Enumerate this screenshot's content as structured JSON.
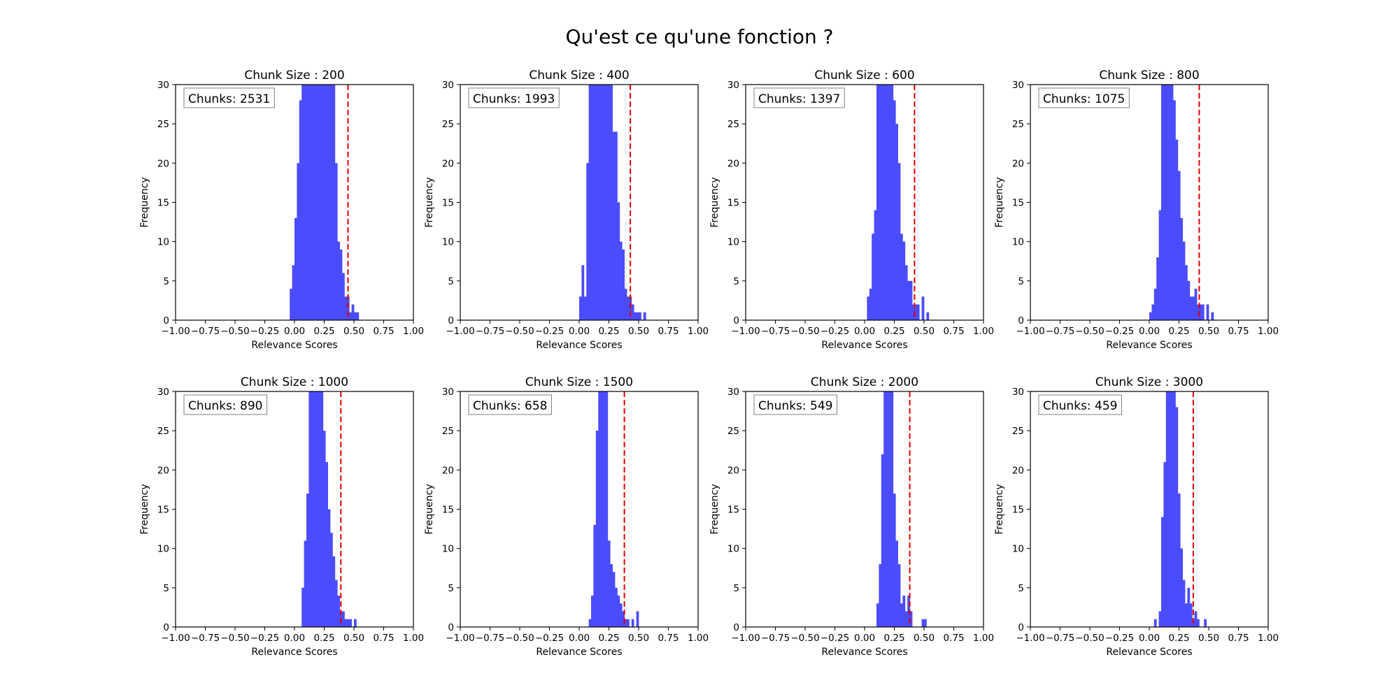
{
  "figure": {
    "suptitle": "Qu'est ce qu'une fonction ?"
  },
  "colors": {
    "bars": "#4c4cff",
    "threshold_line": "#e00000",
    "axes": "#000000",
    "background": "#ffffff"
  },
  "chart_data": [
    {
      "type": "bar",
      "title": "Chunk Size : 200",
      "annotation": "Chunks: 2531",
      "xlabel": "Relevance Scores",
      "ylabel": "Frequency",
      "xlim": [
        -1.0,
        1.0
      ],
      "ylim": [
        0,
        30
      ],
      "xticks": [
        "−1.00",
        "−0.75",
        "−0.50",
        "−0.25",
        "0.00",
        "0.25",
        "0.50",
        "0.75",
        "1.00"
      ],
      "yticks": [
        "0",
        "5",
        "10",
        "15",
        "20",
        "25",
        "30"
      ],
      "bin_width": 0.02,
      "bins": [
        [
          -0.03,
          4
        ],
        [
          -0.01,
          7
        ],
        [
          0.01,
          13
        ],
        [
          0.03,
          20
        ],
        [
          0.05,
          28
        ],
        [
          0.07,
          30
        ],
        [
          0.09,
          30
        ],
        [
          0.11,
          30
        ],
        [
          0.13,
          30
        ],
        [
          0.15,
          30
        ],
        [
          0.17,
          30
        ],
        [
          0.19,
          30
        ],
        [
          0.21,
          30
        ],
        [
          0.23,
          30
        ],
        [
          0.25,
          30
        ],
        [
          0.27,
          30
        ],
        [
          0.29,
          30
        ],
        [
          0.31,
          30
        ],
        [
          0.33,
          30
        ],
        [
          0.35,
          20
        ],
        [
          0.37,
          10
        ],
        [
          0.39,
          9
        ],
        [
          0.41,
          6
        ],
        [
          0.43,
          3
        ],
        [
          0.45,
          3
        ],
        [
          0.47,
          1
        ],
        [
          0.49,
          2
        ],
        [
          0.51,
          1
        ],
        [
          0.53,
          1
        ]
      ],
      "threshold": 0.45,
      "grid": false
    },
    {
      "type": "bar",
      "title": "Chunk Size : 400",
      "annotation": "Chunks: 1993",
      "xlabel": "Relevance Scores",
      "ylabel": "Frequency",
      "xlim": [
        -1.0,
        1.0
      ],
      "ylim": [
        0,
        30
      ],
      "xticks": [
        "−1.00",
        "−0.75",
        "−0.50",
        "−0.25",
        "0.00",
        "0.25",
        "0.50",
        "0.75",
        "1.00"
      ],
      "yticks": [
        "0",
        "5",
        "10",
        "15",
        "20",
        "25",
        "30"
      ],
      "bin_width": 0.02,
      "bins": [
        [
          0.01,
          3
        ],
        [
          0.03,
          7
        ],
        [
          0.05,
          3
        ],
        [
          0.07,
          20
        ],
        [
          0.09,
          30
        ],
        [
          0.11,
          30
        ],
        [
          0.13,
          30
        ],
        [
          0.15,
          30
        ],
        [
          0.17,
          30
        ],
        [
          0.19,
          30
        ],
        [
          0.21,
          30
        ],
        [
          0.23,
          30
        ],
        [
          0.25,
          30
        ],
        [
          0.27,
          30
        ],
        [
          0.29,
          24
        ],
        [
          0.31,
          24
        ],
        [
          0.33,
          15
        ],
        [
          0.35,
          10
        ],
        [
          0.37,
          9
        ],
        [
          0.39,
          4
        ],
        [
          0.41,
          3
        ],
        [
          0.43,
          3
        ],
        [
          0.45,
          2
        ],
        [
          0.47,
          1
        ],
        [
          0.49,
          1
        ],
        [
          0.51,
          1
        ],
        [
          0.55,
          1
        ]
      ],
      "threshold": 0.43,
      "grid": false
    },
    {
      "type": "bar",
      "title": "Chunk Size : 600",
      "annotation": "Chunks: 1397",
      "xlabel": "Relevance Scores",
      "ylabel": "Frequency",
      "xlim": [
        -1.0,
        1.0
      ],
      "ylim": [
        0,
        30
      ],
      "xticks": [
        "−1.00",
        "−0.75",
        "−0.50",
        "−0.25",
        "0.00",
        "0.25",
        "0.50",
        "0.75",
        "1.00"
      ],
      "yticks": [
        "0",
        "5",
        "10",
        "15",
        "20",
        "25",
        "30"
      ],
      "bin_width": 0.02,
      "bins": [
        [
          0.03,
          3
        ],
        [
          0.05,
          4
        ],
        [
          0.07,
          11
        ],
        [
          0.09,
          14
        ],
        [
          0.11,
          30
        ],
        [
          0.13,
          30
        ],
        [
          0.15,
          30
        ],
        [
          0.17,
          30
        ],
        [
          0.19,
          30
        ],
        [
          0.21,
          30
        ],
        [
          0.23,
          30
        ],
        [
          0.25,
          28
        ],
        [
          0.27,
          25
        ],
        [
          0.29,
          20
        ],
        [
          0.31,
          11
        ],
        [
          0.33,
          10
        ],
        [
          0.35,
          7
        ],
        [
          0.37,
          5
        ],
        [
          0.39,
          5
        ],
        [
          0.41,
          2
        ],
        [
          0.43,
          2
        ],
        [
          0.45,
          2
        ],
        [
          0.49,
          3
        ],
        [
          0.53,
          1
        ]
      ],
      "threshold": 0.42,
      "grid": false
    },
    {
      "type": "bar",
      "title": "Chunk Size : 800",
      "annotation": "Chunks: 1075",
      "xlabel": "Relevance Scores",
      "ylabel": "Frequency",
      "xlim": [
        -1.0,
        1.0
      ],
      "ylim": [
        0,
        30
      ],
      "xticks": [
        "−1.00",
        "−0.75",
        "−0.50",
        "−0.25",
        "0.00",
        "0.25",
        "0.50",
        "0.75",
        "1.00"
      ],
      "yticks": [
        "0",
        "5",
        "10",
        "15",
        "20",
        "25",
        "30"
      ],
      "bin_width": 0.02,
      "bins": [
        [
          0.01,
          1
        ],
        [
          0.03,
          2
        ],
        [
          0.05,
          4
        ],
        [
          0.07,
          8
        ],
        [
          0.09,
          14
        ],
        [
          0.11,
          30
        ],
        [
          0.13,
          30
        ],
        [
          0.15,
          30
        ],
        [
          0.17,
          30
        ],
        [
          0.19,
          30
        ],
        [
          0.21,
          28
        ],
        [
          0.23,
          23
        ],
        [
          0.25,
          19
        ],
        [
          0.27,
          13
        ],
        [
          0.29,
          10
        ],
        [
          0.31,
          7
        ],
        [
          0.33,
          5
        ],
        [
          0.35,
          3
        ],
        [
          0.37,
          3
        ],
        [
          0.39,
          4
        ],
        [
          0.41,
          2
        ],
        [
          0.43,
          2
        ],
        [
          0.45,
          2
        ],
        [
          0.49,
          2
        ],
        [
          0.53,
          1
        ]
      ],
      "threshold": 0.42,
      "grid": false
    },
    {
      "type": "bar",
      "title": "Chunk Size : 1000",
      "annotation": "Chunks: 890",
      "xlabel": "Relevance Scores",
      "ylabel": "Frequency",
      "xlim": [
        -1.0,
        1.0
      ],
      "ylim": [
        0,
        30
      ],
      "xticks": [
        "−1.00",
        "−0.75",
        "−0.50",
        "−0.25",
        "0.00",
        "0.25",
        "0.50",
        "0.75",
        "1.00"
      ],
      "yticks": [
        "0",
        "5",
        "10",
        "15",
        "20",
        "25",
        "30"
      ],
      "bin_width": 0.02,
      "bins": [
        [
          0.07,
          5
        ],
        [
          0.09,
          11
        ],
        [
          0.11,
          17
        ],
        [
          0.13,
          30
        ],
        [
          0.15,
          30
        ],
        [
          0.17,
          30
        ],
        [
          0.19,
          30
        ],
        [
          0.21,
          30
        ],
        [
          0.23,
          30
        ],
        [
          0.25,
          25
        ],
        [
          0.27,
          21
        ],
        [
          0.29,
          15
        ],
        [
          0.31,
          12
        ],
        [
          0.33,
          9
        ],
        [
          0.35,
          6
        ],
        [
          0.37,
          4
        ],
        [
          0.39,
          2
        ],
        [
          0.41,
          2
        ],
        [
          0.43,
          1
        ],
        [
          0.45,
          1
        ],
        [
          0.47,
          1
        ],
        [
          0.51,
          1
        ]
      ],
      "threshold": 0.39,
      "grid": false
    },
    {
      "type": "bar",
      "title": "Chunk Size : 1500",
      "annotation": "Chunks: 658",
      "xlabel": "Relevance Scores",
      "ylabel": "Frequency",
      "xlim": [
        -1.0,
        1.0
      ],
      "ylim": [
        0,
        30
      ],
      "xticks": [
        "−1.00",
        "−0.75",
        "−0.50",
        "−0.25",
        "0.00",
        "0.25",
        "0.50",
        "0.75",
        "1.00"
      ],
      "yticks": [
        "0",
        "5",
        "10",
        "15",
        "20",
        "25",
        "30"
      ],
      "bin_width": 0.02,
      "bins": [
        [
          0.09,
          1
        ],
        [
          0.11,
          4
        ],
        [
          0.13,
          13
        ],
        [
          0.15,
          25
        ],
        [
          0.17,
          30
        ],
        [
          0.19,
          30
        ],
        [
          0.21,
          30
        ],
        [
          0.23,
          30
        ],
        [
          0.25,
          11
        ],
        [
          0.27,
          8
        ],
        [
          0.29,
          7
        ],
        [
          0.31,
          5
        ],
        [
          0.33,
          4
        ],
        [
          0.35,
          3
        ],
        [
          0.37,
          2
        ],
        [
          0.39,
          1
        ],
        [
          0.41,
          1
        ],
        [
          0.45,
          1
        ],
        [
          0.49,
          2
        ]
      ],
      "threshold": 0.38,
      "grid": false
    },
    {
      "type": "bar",
      "title": "Chunk Size : 2000",
      "annotation": "Chunks: 549",
      "xlabel": "Relevance Scores",
      "ylabel": "Frequency",
      "xlim": [
        -1.0,
        1.0
      ],
      "ylim": [
        0,
        30
      ],
      "xticks": [
        "−1.00",
        "−0.75",
        "−0.50",
        "−0.25",
        "0.00",
        "0.25",
        "0.50",
        "0.75",
        "1.00"
      ],
      "yticks": [
        "0",
        "5",
        "10",
        "15",
        "20",
        "25",
        "30"
      ],
      "bin_width": 0.02,
      "bins": [
        [
          0.11,
          3
        ],
        [
          0.13,
          8
        ],
        [
          0.15,
          22
        ],
        [
          0.17,
          30
        ],
        [
          0.19,
          30
        ],
        [
          0.21,
          30
        ],
        [
          0.23,
          30
        ],
        [
          0.25,
          17
        ],
        [
          0.27,
          11
        ],
        [
          0.29,
          8
        ],
        [
          0.31,
          3
        ],
        [
          0.33,
          4
        ],
        [
          0.35,
          2
        ],
        [
          0.37,
          4
        ],
        [
          0.39,
          2
        ],
        [
          0.49,
          1
        ],
        [
          0.51,
          1
        ]
      ],
      "threshold": 0.38,
      "grid": false
    },
    {
      "type": "bar",
      "title": "Chunk Size : 3000",
      "annotation": "Chunks: 459",
      "xlabel": "Relevance Scores",
      "ylabel": "Frequency",
      "xlim": [
        -1.0,
        1.0
      ],
      "ylim": [
        0,
        30
      ],
      "xticks": [
        "−1.00",
        "−0.75",
        "−0.50",
        "−0.25",
        "0.00",
        "0.25",
        "0.50",
        "0.75",
        "1.00"
      ],
      "yticks": [
        "0",
        "5",
        "10",
        "15",
        "20",
        "25",
        "30"
      ],
      "bin_width": 0.02,
      "bins": [
        [
          0.05,
          1
        ],
        [
          0.09,
          2
        ],
        [
          0.11,
          14
        ],
        [
          0.13,
          21
        ],
        [
          0.15,
          30
        ],
        [
          0.17,
          30
        ],
        [
          0.19,
          30
        ],
        [
          0.21,
          30
        ],
        [
          0.23,
          28
        ],
        [
          0.25,
          17
        ],
        [
          0.27,
          10
        ],
        [
          0.29,
          6
        ],
        [
          0.31,
          3
        ],
        [
          0.33,
          5
        ],
        [
          0.35,
          3
        ],
        [
          0.37,
          1
        ],
        [
          0.39,
          2
        ],
        [
          0.41,
          1
        ],
        [
          0.47,
          1
        ]
      ],
      "threshold": 0.37,
      "grid": false
    }
  ]
}
